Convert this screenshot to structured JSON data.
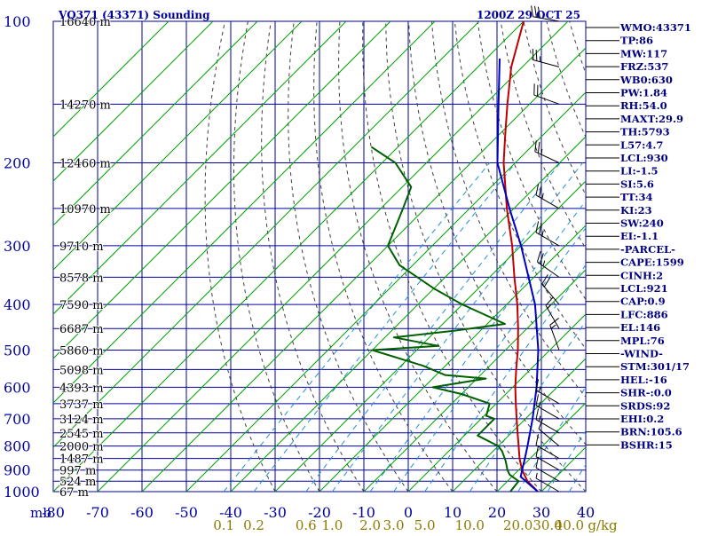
{
  "header": {
    "station_title": "VQ371 (43371) Sounding",
    "valid_time": "1200Z 29 OCT 25"
  },
  "colors": {
    "grid": "#0000a0",
    "isotherm": "#00a000",
    "dry_adiabat": "#404040",
    "mixing_ratio": "#2090e0",
    "temperature": "#c00000",
    "dewpoint": "#006000",
    "parcel": "#0000c0",
    "ratio_label": "#8b7a00",
    "wind_barb": "#000000"
  },
  "axes": {
    "pressure_unit_label": "mb",
    "ratio_unit_label": "g/kg",
    "pressure_ticks": [
      "100",
      "200",
      "300",
      "400",
      "500",
      "600",
      "700",
      "800",
      "900",
      "1000"
    ],
    "temperature_ticks": [
      "-80",
      "-70",
      "-60",
      "-50",
      "-40",
      "-30",
      "-20",
      "-10",
      "0",
      "10",
      "20",
      "30",
      "40"
    ],
    "mixing_ratio_labels": [
      "0.1",
      "0.2",
      "0.6",
      "1.0",
      "2.0",
      "3.0",
      "5.0",
      "10.0",
      "20.0",
      "30.0",
      "40.0"
    ]
  },
  "heights": [
    {
      "p": 1000,
      "label": "67 m"
    },
    {
      "p": 950,
      "label": "524 m"
    },
    {
      "p": 900,
      "label": "997 m"
    },
    {
      "p": 850,
      "label": "1487 m"
    },
    {
      "p": 800,
      "label": "2000 m"
    },
    {
      "p": 750,
      "label": "2545 m"
    },
    {
      "p": 700,
      "label": "3124 m"
    },
    {
      "p": 650,
      "label": "3737 m"
    },
    {
      "p": 600,
      "label": "4393 m"
    },
    {
      "p": 550,
      "label": "5098 m"
    },
    {
      "p": 500,
      "label": "5860 m"
    },
    {
      "p": 450,
      "label": "6687 m"
    },
    {
      "p": 400,
      "label": "7590 m"
    },
    {
      "p": 350,
      "label": "8578 m"
    },
    {
      "p": 300,
      "label": "9710 m"
    },
    {
      "p": 250,
      "label": "10970 m"
    },
    {
      "p": 200,
      "label": "12460 m"
    },
    {
      "p": 150,
      "label": "14270 m"
    },
    {
      "p": 100,
      "label": "16640 m"
    }
  ],
  "indices": [
    "WMO:43371",
    "TP:86",
    "MW:117",
    "FRZ:537",
    "WB0:630",
    "PW:1.84",
    "RH:54.0",
    "MAXT:29.9",
    "TH:5793",
    "L57:4.7",
    "LCL:930",
    "LI:-1.5",
    "SI:5.6",
    "TT:34",
    "KI:23",
    "SW:240",
    "EI:-1.1",
    "-PARCEL-",
    "CAPE:1599",
    "CINH:2",
    "LCL:921",
    "CAP:0.9",
    "LFC:886",
    "EL:146",
    "MPL:76",
    "-WIND-",
    "STM:301/17",
    "HEL:-16",
    "SHR-:0.0",
    "SRDS:92",
    "EHI:0.2",
    "BRN:105.6",
    "BSHR:15"
  ],
  "chart_data": {
    "type": "line",
    "title": "VQ371 (43371) Sounding",
    "xlabel": "",
    "ylabel": "mb",
    "x_unit_reference": "temperature (°C) at 1000 mb, skewed",
    "xlim": [
      -80,
      40
    ],
    "ylim": [
      1000,
      100
    ],
    "y_scale": "log",
    "series": [
      {
        "key": "temperature",
        "points": [
          {
            "p": 1000,
            "t": 29.2
          },
          {
            "p": 950,
            "t": 24.5
          },
          {
            "p": 900,
            "t": 20.8
          },
          {
            "p": 850,
            "t": 17.6
          },
          {
            "p": 800,
            "t": 14.6
          },
          {
            "p": 750,
            "t": 11.4
          },
          {
            "p": 700,
            "t": 8.0
          },
          {
            "p": 650,
            "t": 4.4
          },
          {
            "p": 600,
            "t": 0.6
          },
          {
            "p": 550,
            "t": -3.2
          },
          {
            "p": 500,
            "t": -7.2
          },
          {
            "p": 450,
            "t": -12.0
          },
          {
            "p": 400,
            "t": -17.6
          },
          {
            "p": 350,
            "t": -24.4
          },
          {
            "p": 300,
            "t": -32.0
          },
          {
            "p": 250,
            "t": -41.6
          },
          {
            "p": 200,
            "t": -52.6
          },
          {
            "p": 175,
            "t": -58.4
          },
          {
            "p": 150,
            "t": -65.0
          },
          {
            "p": 125,
            "t": -72.5
          },
          {
            "p": 100,
            "t": -80.0
          }
        ]
      },
      {
        "key": "dewpoint",
        "points": [
          {
            "p": 1000,
            "t": 23.0
          },
          {
            "p": 950,
            "t": 22.5
          },
          {
            "p": 920,
            "t": 19.0
          },
          {
            "p": 900,
            "t": 17.5
          },
          {
            "p": 860,
            "t": 15.0
          },
          {
            "p": 820,
            "t": 12.0
          },
          {
            "p": 800,
            "t": 10.0
          },
          {
            "p": 760,
            "t": 3.0
          },
          {
            "p": 700,
            "t": 3.0
          },
          {
            "p": 690,
            "t": 0.5
          },
          {
            "p": 650,
            "t": -1.5
          },
          {
            "p": 620,
            "t": -10.0
          },
          {
            "p": 600,
            "t": -18.0
          },
          {
            "p": 575,
            "t": -8.0
          },
          {
            "p": 565,
            "t": -18.0
          },
          {
            "p": 540,
            "t": -25.0
          },
          {
            "p": 500,
            "t": -40.0
          },
          {
            "p": 490,
            "t": -26.0
          },
          {
            "p": 470,
            "t": -38.0
          },
          {
            "p": 455,
            "t": -26.0
          },
          {
            "p": 440,
            "t": -16.0
          },
          {
            "p": 400,
            "t": -30.0
          },
          {
            "p": 370,
            "t": -40.0
          },
          {
            "p": 330,
            "t": -53.0
          },
          {
            "p": 300,
            "t": -60.0
          },
          {
            "p": 250,
            "t": -65.0
          },
          {
            "p": 225,
            "t": -68.0
          },
          {
            "p": 200,
            "t": -77.0
          },
          {
            "p": 185,
            "t": -86.0
          }
        ]
      },
      {
        "key": "parcel",
        "points": [
          {
            "p": 1000,
            "t": 29.2
          },
          {
            "p": 930,
            "t": 22.0
          },
          {
            "p": 900,
            "t": 20.8
          },
          {
            "p": 850,
            "t": 18.8
          },
          {
            "p": 800,
            "t": 16.6
          },
          {
            "p": 700,
            "t": 11.6
          },
          {
            "p": 600,
            "t": 5.4
          },
          {
            "p": 500,
            "t": -2.6
          },
          {
            "p": 400,
            "t": -13.6
          },
          {
            "p": 300,
            "t": -30.0
          },
          {
            "p": 250,
            "t": -41.0
          },
          {
            "p": 200,
            "t": -54.0
          },
          {
            "p": 150,
            "t": -67.0
          },
          {
            "p": 120,
            "t": -77.0
          }
        ]
      }
    ],
    "winds": [
      {
        "p": 100,
        "dir": 280,
        "spd": 30
      },
      {
        "p": 125,
        "dir": 285,
        "spd": 25
      },
      {
        "p": 150,
        "dir": 290,
        "spd": 20
      },
      {
        "p": 200,
        "dir": 295,
        "spd": 25
      },
      {
        "p": 250,
        "dir": 300,
        "spd": 25
      },
      {
        "p": 300,
        "dir": 300,
        "spd": 25
      },
      {
        "p": 350,
        "dir": 305,
        "spd": 25
      },
      {
        "p": 400,
        "dir": 320,
        "spd": 20
      },
      {
        "p": 450,
        "dir": 330,
        "spd": 15
      },
      {
        "p": 500,
        "dir": 340,
        "spd": 15
      },
      {
        "p": 650,
        "dir": 300,
        "spd": 15
      },
      {
        "p": 700,
        "dir": 300,
        "spd": 15
      },
      {
        "p": 750,
        "dir": 300,
        "spd": 15
      },
      {
        "p": 800,
        "dir": 310,
        "spd": 10
      },
      {
        "p": 850,
        "dir": 300,
        "spd": 10
      },
      {
        "p": 900,
        "dir": 300,
        "spd": 10
      },
      {
        "p": 950,
        "dir": 300,
        "spd": 10
      },
      {
        "p": 1000,
        "dir": 300,
        "spd": 5
      }
    ]
  }
}
